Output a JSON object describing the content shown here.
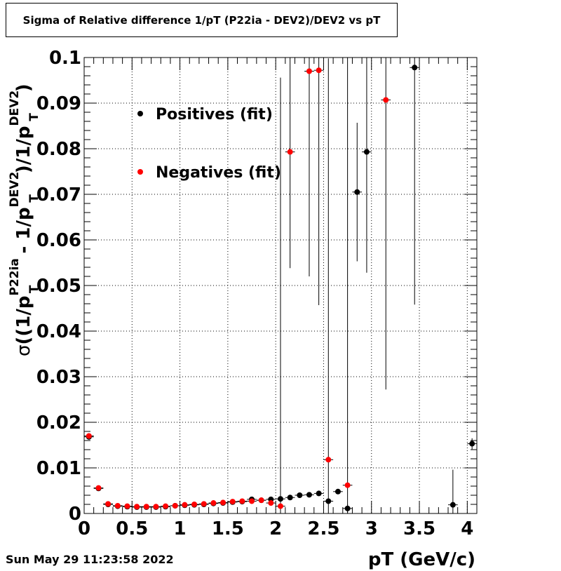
{
  "date_stamp": "Sun May 29 11:23:58 2022",
  "chart_data": {
    "type": "scatter",
    "title": "Sigma of Relative difference 1/pT (P22ia - DEV2)/DEV2 vs pT",
    "xlabel": "pT (GeV/c)",
    "ylabel_parts": {
      "sigma": "σ",
      "open": "((1/p",
      "sub1": "T",
      "sup1": "P22ia",
      "mid": " - 1/p",
      "sub2": "T",
      "sup2": "DEV2",
      "div": ")/1/p",
      "sub3": "T",
      "sup3": "DEV2",
      "close": ")"
    },
    "xlim": [
      0,
      4.1
    ],
    "ylim": [
      0,
      0.1
    ],
    "x_ticks": [
      0,
      0.5,
      1,
      1.5,
      2,
      2.5,
      3,
      3.5,
      4
    ],
    "x_tick_labels": [
      "0",
      "0.5",
      "1",
      "1.5",
      "2",
      "2.5",
      "3",
      "3.5",
      "4"
    ],
    "y_ticks": [
      0,
      0.01,
      0.02,
      0.03,
      0.04,
      0.05,
      0.06,
      0.07,
      0.08,
      0.09,
      0.1
    ],
    "y_tick_labels": [
      "0",
      "0.01",
      "0.02",
      "0.03",
      "0.04",
      "0.05",
      "0.06",
      "0.07",
      "0.08",
      "0.09",
      "0.1"
    ],
    "grid": true,
    "x_half_width": 0.05,
    "series": [
      {
        "name": "Positives (fit)",
        "color": "#000000",
        "points": [
          {
            "x": 0.05,
            "y": 0.0168,
            "err": 0.0006
          },
          {
            "x": 0.15,
            "y": 0.0055,
            "err": 0.0004
          },
          {
            "x": 0.25,
            "y": 0.002,
            "err": 0.0003
          },
          {
            "x": 0.35,
            "y": 0.0016,
            "err": 0.0002
          },
          {
            "x": 0.45,
            "y": 0.0015,
            "err": 0.0002
          },
          {
            "x": 0.55,
            "y": 0.0014,
            "err": 0.0002
          },
          {
            "x": 0.65,
            "y": 0.0014,
            "err": 0.0002
          },
          {
            "x": 0.75,
            "y": 0.0014,
            "err": 0.0002
          },
          {
            "x": 0.85,
            "y": 0.0015,
            "err": 0.0002
          },
          {
            "x": 0.95,
            "y": 0.0017,
            "err": 0.0002
          },
          {
            "x": 1.05,
            "y": 0.0018,
            "err": 0.0002
          },
          {
            "x": 1.15,
            "y": 0.0019,
            "err": 0.0002
          },
          {
            "x": 1.25,
            "y": 0.002,
            "err": 0.0002
          },
          {
            "x": 1.35,
            "y": 0.0022,
            "err": 0.0002
          },
          {
            "x": 1.45,
            "y": 0.0023,
            "err": 0.0002
          },
          {
            "x": 1.55,
            "y": 0.0025,
            "err": 0.0002
          },
          {
            "x": 1.65,
            "y": 0.0026,
            "err": 0.0002
          },
          {
            "x": 1.75,
            "y": 0.0031,
            "err": 0.0003
          },
          {
            "x": 1.85,
            "y": 0.0029,
            "err": 0.0003
          },
          {
            "x": 1.95,
            "y": 0.0031,
            "err": 0.0003
          },
          {
            "x": 2.05,
            "y": 0.0032,
            "err": 0.0003
          },
          {
            "x": 2.15,
            "y": 0.0035,
            "err": 0.0003
          },
          {
            "x": 2.25,
            "y": 0.004,
            "err": 0.0003
          },
          {
            "x": 2.35,
            "y": 0.0041,
            "err": 0.0003
          },
          {
            "x": 2.45,
            "y": 0.0044,
            "err": 0.0003
          },
          {
            "x": 2.55,
            "y": 0.0027,
            "err": 0.0004
          },
          {
            "x": 2.65,
            "y": 0.0048,
            "err": 0.0004
          },
          {
            "x": 2.75,
            "y": 0.0011,
            "err": 0.0009
          },
          {
            "x": 2.85,
            "y": 0.0705,
            "err": 0.0152
          },
          {
            "x": 2.95,
            "y": 0.0793,
            "err": 0.0265
          },
          {
            "x": 3.45,
            "y": 0.0978,
            "err": 0.052
          },
          {
            "x": 3.85,
            "y": 0.0019,
            "err": 0.0077
          },
          {
            "x": 4.05,
            "y": 0.0153,
            "err": 0.0012
          }
        ]
      },
      {
        "name": "Negatives (fit)",
        "color": "#ff0000",
        "points": [
          {
            "x": 0.05,
            "y": 0.017,
            "err": 0.0006
          },
          {
            "x": 0.15,
            "y": 0.0056,
            "err": 0.0004
          },
          {
            "x": 0.25,
            "y": 0.0021,
            "err": 0.0003
          },
          {
            "x": 0.35,
            "y": 0.0017,
            "err": 0.0002
          },
          {
            "x": 0.45,
            "y": 0.0016,
            "err": 0.0002
          },
          {
            "x": 0.55,
            "y": 0.0015,
            "err": 0.0002
          },
          {
            "x": 0.65,
            "y": 0.0015,
            "err": 0.0002
          },
          {
            "x": 0.75,
            "y": 0.0015,
            "err": 0.0002
          },
          {
            "x": 0.85,
            "y": 0.0016,
            "err": 0.0002
          },
          {
            "x": 0.95,
            "y": 0.0017,
            "err": 0.0002
          },
          {
            "x": 1.05,
            "y": 0.0019,
            "err": 0.0002
          },
          {
            "x": 1.15,
            "y": 0.002,
            "err": 0.0002
          },
          {
            "x": 1.25,
            "y": 0.0021,
            "err": 0.0002
          },
          {
            "x": 1.35,
            "y": 0.0023,
            "err": 0.0002
          },
          {
            "x": 1.45,
            "y": 0.0024,
            "err": 0.0002
          },
          {
            "x": 1.55,
            "y": 0.0026,
            "err": 0.0002
          },
          {
            "x": 1.65,
            "y": 0.0027,
            "err": 0.0002
          },
          {
            "x": 1.75,
            "y": 0.0027,
            "err": 0.0003
          },
          {
            "x": 1.85,
            "y": 0.0029,
            "err": 0.0003
          },
          {
            "x": 1.95,
            "y": 0.0023,
            "err": 0.0003
          },
          {
            "x": 2.05,
            "y": 0.0016,
            "err": 0.094
          },
          {
            "x": 2.15,
            "y": 0.0793,
            "err": 0.0255
          },
          {
            "x": 2.35,
            "y": 0.097,
            "err": 0.045
          },
          {
            "x": 2.45,
            "y": 0.0972,
            "err": 0.0515
          },
          {
            "x": 2.55,
            "y": 0.0118,
            "err": 0.088
          },
          {
            "x": 2.75,
            "y": 0.0062,
            "err": 0.094
          },
          {
            "x": 3.15,
            "y": 0.0907,
            "err": 0.0635
          }
        ]
      }
    ],
    "legend": {
      "position": "top-left",
      "entries": [
        "Positives (fit)",
        "Negatives (fit)"
      ]
    }
  }
}
